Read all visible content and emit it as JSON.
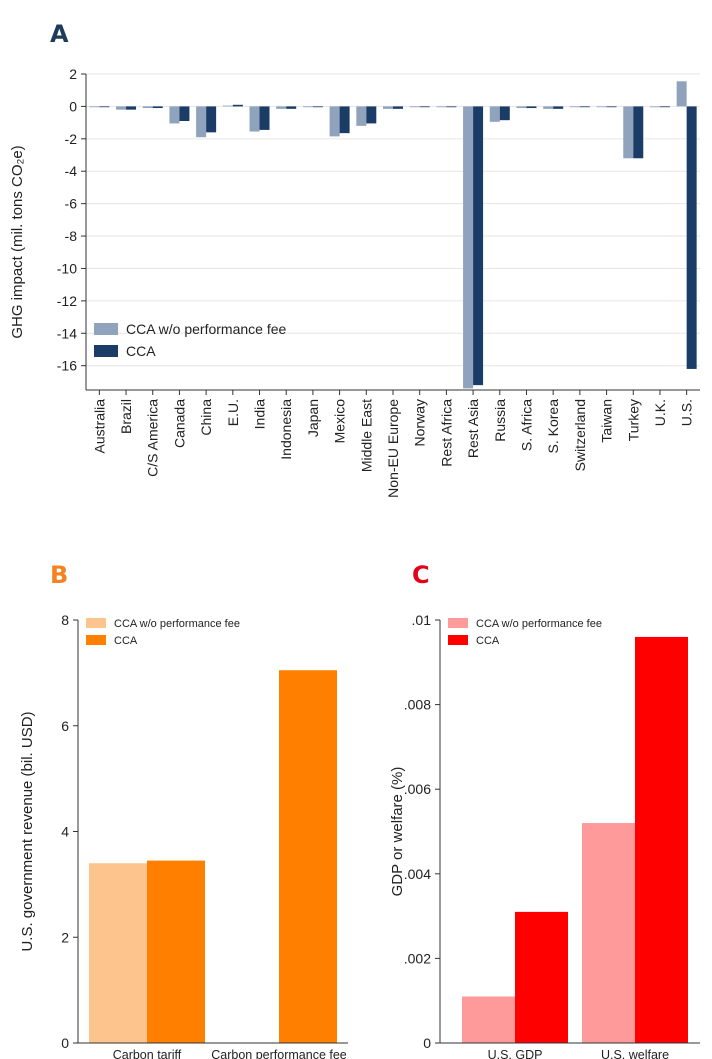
{
  "chart_data": [
    {
      "panel": "A",
      "type": "bar",
      "ylabel": "GHG impact (mil. tons CO₂e)",
      "ylim": [
        -17.5,
        2
      ],
      "yticks": [
        2,
        0,
        -2,
        -4,
        -6,
        -8,
        -10,
        -12,
        -14,
        -16
      ],
      "grid": true,
      "legend_position": "bottom-left",
      "categories": [
        "Australia",
        "Brazil",
        "C/S America",
        "Canada",
        "China",
        "E.U.",
        "India",
        "Indonesia",
        "Japan",
        "Mexico",
        "Middle East",
        "Non-EU Europe",
        "Norway",
        "Rest Africa",
        "Rest Asia",
        "Russia",
        "S. Africa",
        "S. Korea",
        "Switzerland",
        "Taiwan",
        "Turkey",
        "U.K.",
        "U.S."
      ],
      "series": [
        {
          "name": "CCA w/o performance fee",
          "color": "#8fa3bd",
          "values": [
            -0.05,
            -0.2,
            -0.1,
            -1.05,
            -1.9,
            0.05,
            -1.55,
            -0.15,
            -0.05,
            -1.85,
            -1.2,
            -0.15,
            -0.05,
            -0.05,
            -17.4,
            -0.95,
            -0.1,
            -0.15,
            -0.05,
            -0.02,
            -3.2,
            -0.05,
            1.55
          ]
        },
        {
          "name": "CCA",
          "color": "#1c3c68",
          "values": [
            -0.05,
            -0.2,
            -0.1,
            -0.9,
            -1.6,
            0.1,
            -1.45,
            -0.15,
            -0.05,
            -1.65,
            -1.05,
            -0.15,
            -0.05,
            -0.05,
            -17.2,
            -0.85,
            -0.1,
            -0.15,
            -0.05,
            -0.02,
            -3.2,
            -0.05,
            -16.2
          ]
        }
      ]
    },
    {
      "panel": "B",
      "type": "bar",
      "ylabel": "U.S. government revenue (bil. USD)",
      "ylim": [
        0,
        8
      ],
      "yticks": [
        0,
        2,
        4,
        6,
        8
      ],
      "yticks_labels": [
        "0",
        "2",
        "4",
        "6",
        "8"
      ],
      "grid": false,
      "legend_position": "top-left",
      "categories": [
        "Carbon tariff",
        "Carbon performance fee"
      ],
      "series": [
        {
          "name": "CCA w/o performance fee",
          "color": "#fdc48e",
          "values": [
            3.4,
            0
          ]
        },
        {
          "name": "CCA",
          "color": "#ff7f00",
          "values": [
            3.45,
            7.05
          ]
        }
      ]
    },
    {
      "panel": "C",
      "type": "bar",
      "ylabel": "GDP or welfare (%)",
      "ylim": [
        0,
        0.01
      ],
      "yticks": [
        0,
        0.002,
        0.004,
        0.006,
        0.008,
        0.01
      ],
      "yticks_labels": [
        "0",
        ".002",
        ".004",
        ".006",
        ".008",
        ".01"
      ],
      "grid": false,
      "legend_position": "top-left",
      "categories": [
        "U.S. GDP",
        "U.S. welfare"
      ],
      "series": [
        {
          "name": "CCA w/o performance fee",
          "color": "#ff9a9a",
          "values": [
            0.0011,
            0.0052
          ]
        },
        {
          "name": "CCA",
          "color": "#ff0000",
          "values": [
            0.0031,
            0.0096
          ]
        }
      ]
    }
  ],
  "labels": {
    "a": "A",
    "b": "B",
    "c": "C"
  },
  "colors": {
    "label_a": "#1f3b5a",
    "label_b": "#f58220",
    "label_c": "#e4001b"
  }
}
